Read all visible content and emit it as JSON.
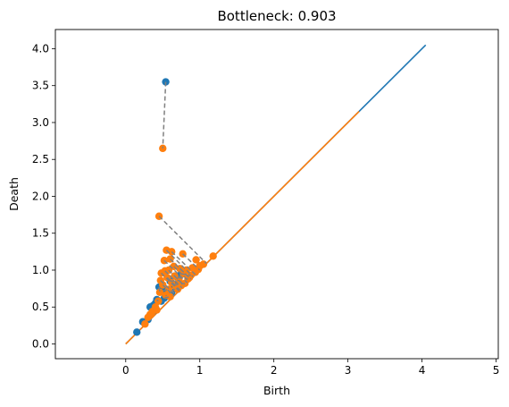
{
  "chart_data": {
    "type": "scatter",
    "title": "Bottleneck: 0.903",
    "xlabel": "Birth",
    "ylabel": "Death",
    "xlim": [
      -0.95,
      5.03
    ],
    "ylim": [
      -0.2,
      4.26
    ],
    "xticks": [
      0,
      1,
      2,
      3,
      4,
      5
    ],
    "yticks": [
      0.0,
      0.5,
      1.0,
      1.5,
      2.0,
      2.5,
      3.0,
      3.5,
      4.0
    ],
    "ytick_labels": [
      "0.0",
      "0.5",
      "1.0",
      "1.5",
      "2.0",
      "2.5",
      "3.0",
      "3.5",
      "4.0"
    ],
    "grid": false,
    "colors": {
      "series1": "#1f77b4",
      "series2": "#ff7f0e",
      "matching": "#808080"
    },
    "diagonals": [
      {
        "series": "series1",
        "from": [
          0,
          0
        ],
        "to": [
          4.05,
          4.05
        ]
      },
      {
        "series": "series2",
        "from": [
          0,
          0
        ],
        "to": [
          3.15,
          3.15
        ]
      }
    ],
    "series": [
      {
        "key": "series1",
        "points": [
          [
            0.54,
            3.55
          ],
          [
            0.15,
            0.16
          ],
          [
            0.23,
            0.3
          ],
          [
            0.33,
            0.5
          ],
          [
            0.37,
            0.52
          ],
          [
            0.45,
            0.77
          ],
          [
            0.42,
            0.6
          ],
          [
            0.5,
            0.72
          ],
          [
            0.55,
            0.65
          ],
          [
            0.62,
            0.7
          ],
          [
            0.38,
            0.45
          ],
          [
            0.48,
            0.58
          ],
          [
            0.6,
            0.85
          ],
          [
            0.7,
            0.9
          ],
          [
            0.58,
            0.66
          ],
          [
            0.3,
            0.33
          ],
          [
            0.52,
            0.62
          ],
          [
            0.65,
            0.8
          ],
          [
            0.75,
            0.95
          ],
          [
            0.4,
            0.55
          ]
        ]
      },
      {
        "key": "series2",
        "points": [
          [
            0.5,
            2.65
          ],
          [
            0.45,
            1.73
          ],
          [
            0.55,
            1.27
          ],
          [
            0.62,
            1.25
          ],
          [
            0.77,
            1.22
          ],
          [
            0.52,
            1.13
          ],
          [
            0.6,
            1.15
          ],
          [
            0.95,
            1.14
          ],
          [
            1.05,
            1.08
          ],
          [
            1.18,
            1.19
          ],
          [
            0.48,
            0.96
          ],
          [
            0.53,
            0.99
          ],
          [
            0.58,
            1.0
          ],
          [
            0.65,
            1.05
          ],
          [
            0.73,
            1.02
          ],
          [
            0.82,
            1.0
          ],
          [
            0.9,
            1.03
          ],
          [
            1.0,
            1.06
          ],
          [
            0.47,
            0.86
          ],
          [
            0.56,
            0.9
          ],
          [
            0.66,
            0.92
          ],
          [
            0.78,
            0.95
          ],
          [
            0.88,
            0.93
          ],
          [
            0.5,
            0.8
          ],
          [
            0.62,
            0.83
          ],
          [
            0.72,
            0.86
          ],
          [
            0.84,
            0.88
          ],
          [
            0.94,
            0.97
          ],
          [
            0.46,
            0.7
          ],
          [
            0.58,
            0.74
          ],
          [
            0.68,
            0.77
          ],
          [
            0.8,
            0.82
          ],
          [
            0.44,
            0.58
          ],
          [
            0.54,
            0.66
          ],
          [
            0.7,
            0.74
          ],
          [
            0.36,
            0.44
          ],
          [
            0.4,
            0.5
          ],
          [
            0.3,
            0.36
          ],
          [
            0.26,
            0.27
          ],
          [
            0.33,
            0.4
          ],
          [
            0.42,
            0.46
          ],
          [
            0.6,
            0.64
          ],
          [
            0.75,
            0.79
          ],
          [
            0.86,
            0.9
          ],
          [
            0.98,
            1.01
          ]
        ]
      }
    ],
    "matchings": [
      [
        [
          0.54,
          3.55
        ],
        [
          0.5,
          2.65
        ]
      ],
      [
        [
          0.45,
          1.73
        ],
        [
          1.09,
          1.09
        ]
      ],
      [
        [
          0.55,
          1.27
        ],
        [
          0.91,
          0.91
        ]
      ],
      [
        [
          0.62,
          1.25
        ],
        [
          0.94,
          0.94
        ]
      ],
      [
        [
          0.77,
          1.22
        ],
        [
          1.0,
          1.0
        ]
      ],
      [
        [
          0.52,
          1.13
        ],
        [
          0.83,
          0.83
        ]
      ],
      [
        [
          0.6,
          1.15
        ],
        [
          0.88,
          0.88
        ]
      ],
      [
        [
          0.48,
          0.96
        ],
        [
          0.72,
          0.72
        ]
      ],
      [
        [
          0.53,
          0.99
        ],
        [
          0.76,
          0.76
        ]
      ],
      [
        [
          0.58,
          1.0
        ],
        [
          0.79,
          0.79
        ]
      ],
      [
        [
          0.65,
          1.05
        ],
        [
          0.85,
          0.85
        ]
      ],
      [
        [
          0.73,
          1.02
        ],
        [
          0.88,
          0.88
        ]
      ],
      [
        [
          0.47,
          0.86
        ],
        [
          0.67,
          0.67
        ]
      ],
      [
        [
          0.56,
          0.9
        ],
        [
          0.73,
          0.73
        ]
      ],
      [
        [
          0.66,
          0.92
        ],
        [
          0.79,
          0.79
        ]
      ],
      [
        [
          0.5,
          0.8
        ],
        [
          0.65,
          0.65
        ]
      ],
      [
        [
          0.62,
          0.83
        ],
        [
          0.72,
          0.72
        ]
      ],
      [
        [
          0.45,
          0.77
        ],
        [
          0.46,
          0.7
        ]
      ],
      [
        [
          0.5,
          0.72
        ],
        [
          0.58,
          0.74
        ]
      ],
      [
        [
          0.6,
          0.85
        ],
        [
          0.72,
          0.86
        ]
      ],
      [
        [
          0.7,
          0.9
        ],
        [
          0.84,
          0.88
        ]
      ],
      [
        [
          0.75,
          0.95
        ],
        [
          0.88,
          0.93
        ]
      ],
      [
        [
          0.42,
          0.6
        ],
        [
          0.44,
          0.58
        ]
      ],
      [
        [
          0.55,
          0.65
        ],
        [
          0.54,
          0.66
        ]
      ],
      [
        [
          0.62,
          0.7
        ],
        [
          0.68,
          0.77
        ]
      ],
      [
        [
          0.65,
          0.8
        ],
        [
          0.8,
          0.82
        ]
      ],
      [
        [
          0.52,
          0.62
        ],
        [
          0.6,
          0.64
        ]
      ]
    ]
  }
}
